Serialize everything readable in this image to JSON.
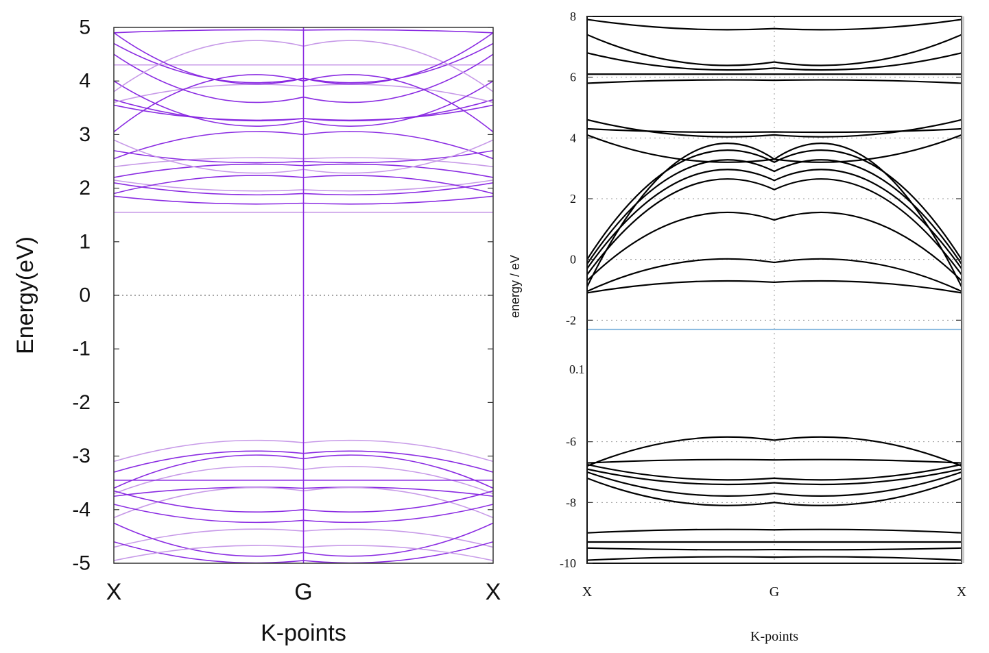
{
  "chart_data": [
    {
      "type": "line",
      "title": "",
      "xlabel": "K-points",
      "ylabel": "Energy(eV)",
      "x_tick_labels": [
        "X",
        "G",
        "X"
      ],
      "x": [
        0,
        0.5,
        1
      ],
      "ylim": [
        -5,
        5
      ],
      "y_ticks": [
        "5",
        "4",
        "3",
        "2",
        "1",
        "0",
        "-1",
        "-2",
        "-3",
        "-4",
        "-5"
      ],
      "y_tick_values": [
        5,
        4,
        3,
        2,
        1,
        0,
        -1,
        -2,
        -3,
        -4,
        -5
      ],
      "fermi_level": 0,
      "grid": "dotted line at 0 eV only",
      "band_color": "#8a2be2",
      "series": [
        {
          "values": [
            1.55,
            1.55,
            1.55
          ]
        },
        {
          "values": [
            1.85,
            1.72,
            1.85
          ]
        },
        {
          "values": [
            2.1,
            1.9,
            2.1
          ]
        },
        {
          "values": [
            2.15,
            1.97,
            2.15
          ]
        },
        {
          "values": [
            1.9,
            2.2,
            1.9
          ]
        },
        {
          "values": [
            2.2,
            2.42,
            2.2
          ]
        },
        {
          "values": [
            2.4,
            2.55,
            2.4
          ]
        },
        {
          "values": [
            2.7,
            2.5,
            2.7
          ]
        },
        {
          "values": [
            2.55,
            3.0,
            2.55
          ]
        },
        {
          "values": [
            2.9,
            2.35,
            2.9
          ]
        },
        {
          "values": [
            3.55,
            3.3,
            3.55
          ]
        },
        {
          "values": [
            3.65,
            3.3,
            3.65
          ]
        },
        {
          "values": [
            3.6,
            3.9,
            3.6
          ]
        },
        {
          "values": [
            3.05,
            4.0,
            3.05
          ]
        },
        {
          "values": [
            4.0,
            3.25,
            4.0
          ]
        },
        {
          "values": [
            4.3,
            4.3,
            4.3
          ]
        },
        {
          "values": [
            4.5,
            3.7,
            4.5
          ]
        },
        {
          "values": [
            4.7,
            4.05,
            4.7
          ]
        },
        {
          "values": [
            3.8,
            4.65,
            3.8
          ]
        },
        {
          "values": [
            4.9,
            4.05,
            4.9
          ]
        },
        {
          "values": [
            4.9,
            4.95,
            4.9
          ]
        },
        {
          "values": [
            -3.1,
            -2.75,
            -3.1
          ]
        },
        {
          "values": [
            -3.3,
            -2.95,
            -3.3
          ]
        },
        {
          "values": [
            -3.6,
            -3.05,
            -3.6
          ]
        },
        {
          "values": [
            -3.7,
            -3.25,
            -3.7
          ]
        },
        {
          "values": [
            -3.45,
            -3.45,
            -3.45
          ]
        },
        {
          "values": [
            -3.75,
            -3.6,
            -3.75
          ]
        },
        {
          "values": [
            -4.15,
            -3.65,
            -4.15
          ]
        },
        {
          "values": [
            -3.65,
            -4.0,
            -3.65
          ]
        },
        {
          "values": [
            -3.9,
            -4.2,
            -3.9
          ]
        },
        {
          "values": [
            -4.7,
            -4.4,
            -4.7
          ]
        },
        {
          "values": [
            -4.25,
            -4.8,
            -4.25
          ]
        },
        {
          "values": [
            -4.6,
            -4.95,
            -4.6
          ]
        },
        {
          "values": [
            -4.95,
            -4.7,
            -4.95
          ]
        }
      ]
    },
    {
      "type": "line",
      "title": "",
      "xlabel": "K-points",
      "ylabel": "energy / eV",
      "x_tick_labels": [
        "X",
        "G",
        "X"
      ],
      "x": [
        0,
        0.5,
        1
      ],
      "ylim": [
        -10,
        8
      ],
      "y_ticks": [
        "8",
        "6",
        "4",
        "2",
        "0",
        "-2",
        "-6",
        "-8",
        "-10"
      ],
      "y_tick_values": [
        8,
        6,
        4,
        2,
        0,
        -2,
        -6,
        -8,
        -10
      ],
      "stray_label": "0.1",
      "fermi_line": -2.3,
      "fermi_color": "#6aa8d8",
      "grid": "dotted at every 2 eV and at G",
      "band_color": "#000000",
      "series": [
        {
          "values": [
            -1.1,
            -0.75,
            -1.1
          ]
        },
        {
          "values": [
            -1.05,
            -0.1,
            -1.05
          ]
        },
        {
          "values": [
            -0.7,
            1.3,
            -0.7
          ]
        },
        {
          "values": [
            -0.5,
            2.3,
            -0.5
          ]
        },
        {
          "values": [
            -0.3,
            2.6,
            -0.3
          ]
        },
        {
          "values": [
            -0.15,
            2.9,
            -0.15
          ]
        },
        {
          "values": [
            0.0,
            3.2,
            0.0
          ]
        },
        {
          "values": [
            -0.9,
            3.3,
            -0.9
          ]
        },
        {
          "values": [
            4.1,
            3.3,
            4.1
          ]
        },
        {
          "values": [
            4.3,
            4.2,
            4.3
          ]
        },
        {
          "values": [
            4.6,
            4.1,
            4.6
          ]
        },
        {
          "values": [
            5.8,
            5.9,
            5.8
          ]
        },
        {
          "values": [
            6.1,
            6.1,
            6.1
          ]
        },
        {
          "values": [
            6.8,
            6.3,
            6.8
          ]
        },
        {
          "values": [
            7.4,
            6.5,
            7.4
          ]
        },
        {
          "values": [
            7.9,
            7.6,
            7.9
          ]
        },
        {
          "values": [
            -6.7,
            -6.6,
            -6.7
          ]
        },
        {
          "values": [
            -6.8,
            -5.95,
            -6.8
          ]
        },
        {
          "values": [
            -6.75,
            -7.2,
            -6.75
          ]
        },
        {
          "values": [
            -6.9,
            -7.35,
            -6.9
          ]
        },
        {
          "values": [
            -7.0,
            -7.7,
            -7.0
          ]
        },
        {
          "values": [
            -7.2,
            -8.0,
            -7.2
          ]
        },
        {
          "values": [
            -9.0,
            -8.9,
            -9.0
          ]
        },
        {
          "values": [
            -9.3,
            -9.3,
            -9.3
          ]
        },
        {
          "values": [
            -9.5,
            -9.55,
            -9.5
          ]
        },
        {
          "values": [
            -9.9,
            -9.8,
            -9.9
          ]
        }
      ]
    }
  ]
}
